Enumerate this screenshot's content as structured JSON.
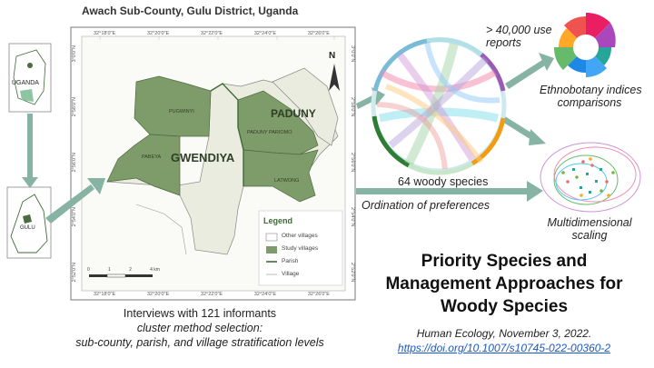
{
  "map": {
    "title": "Awach Sub-County, Gulu District, Uganda",
    "top_ticks": [
      "32°18'0\"E",
      "32°20'0\"E",
      "32°22'0\"E",
      "32°24'0\"E",
      "32°26'0\"E"
    ],
    "bottom_ticks": [
      "32°18'0\"E",
      "32°20'0\"E",
      "32°22'0\"E",
      "32°24'0\"E",
      "32°26'0\"E"
    ],
    "left_ticks": [
      "3°0'0\"N",
      "2°58'0\"N",
      "2°56'0\"N",
      "2°54'0\"N",
      "2°52'0\"N"
    ],
    "right_ticks": [
      "3°0'0\"N",
      "2°58'0\"N",
      "2°56'0\"N",
      "2°54'0\"N",
      "2°52'0\"N"
    ],
    "north_label": "N",
    "parish_big": "PADUNY",
    "parish_big2": "GWENDIYA",
    "villages": [
      "PUGWINYI",
      "PABEYA",
      "PADUNY PARIOMO",
      "LATWONG"
    ],
    "inset_uganda": "UGANDA",
    "inset_gulu": "GULU",
    "scale_labels": [
      "0",
      "1",
      "2",
      "4 km"
    ],
    "legend": {
      "title": "Legend",
      "items": [
        "Other villages",
        "Study villages",
        "Parish",
        "Village"
      ]
    },
    "colors": {
      "study": "#7e9c6a",
      "other": "#e9ecdf",
      "arrow": "#86b3a4",
      "parish": "#3d6b36"
    }
  },
  "caption": {
    "line1": "Interviews with 121 informants",
    "line2": "cluster method selection:",
    "line3": "sub-county, parish, and village stratification levels"
  },
  "flow": {
    "woody": "64 woody species",
    "ordination": "Ordination of preferences",
    "reports": "> 40,000 use",
    "reports2": "reports",
    "ethno": "Ethnobotany indices",
    "ethno2": "comparisons",
    "mds": "Multidimensional",
    "mds2": "scaling"
  },
  "paper": {
    "title1": "Priority Species and",
    "title2": "Management Approaches for",
    "title3": "Woody Species",
    "journal": "Human Ecology, November 3, 2022.",
    "doi": "https://doi.org/10.1007/s10745-022-00360-2"
  }
}
